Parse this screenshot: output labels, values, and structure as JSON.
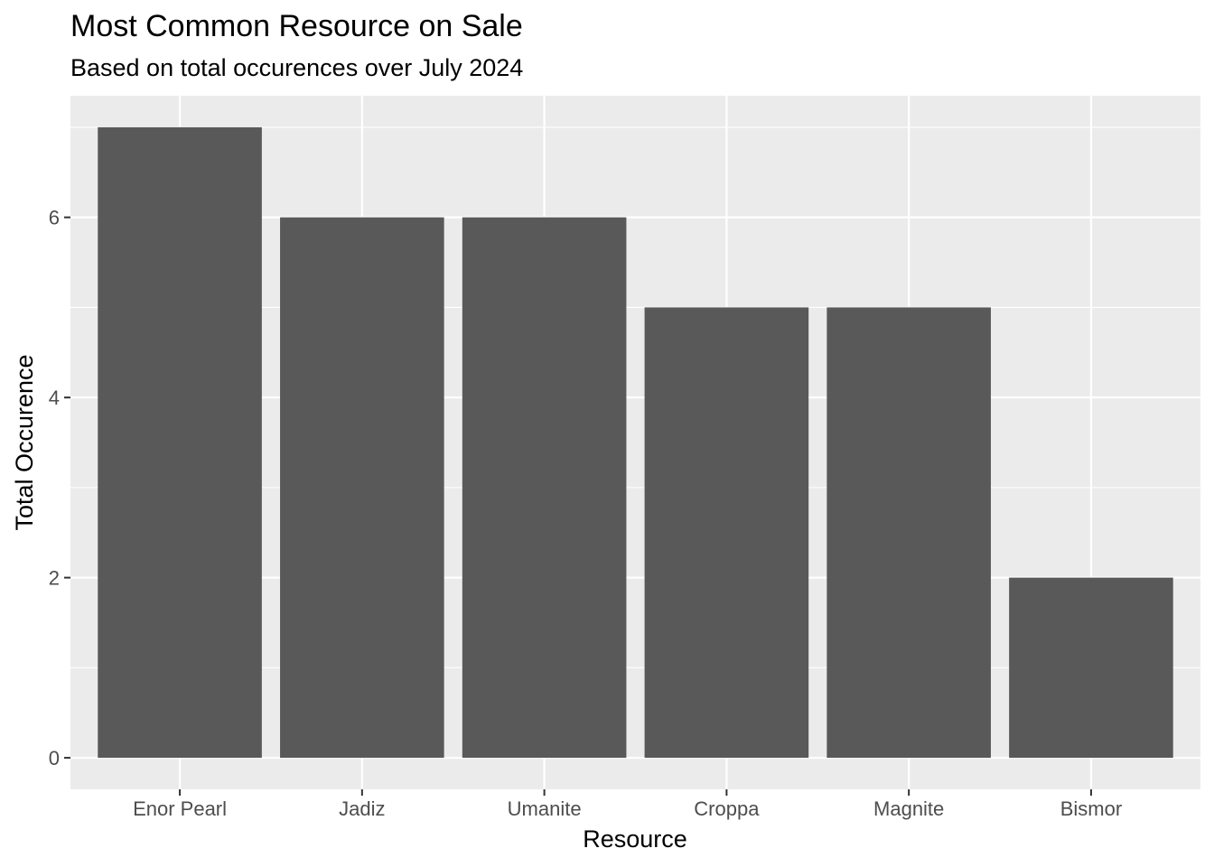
{
  "chart_data": {
    "type": "bar",
    "title": "Most Common Resource on Sale",
    "subtitle": "Based on total occurences over July 2024",
    "xlabel": "Resource",
    "ylabel": "Total Occurence",
    "categories": [
      "Enor Pearl",
      "Jadiz",
      "Umanite",
      "Croppa",
      "Magnite",
      "Bismor"
    ],
    "values": [
      7,
      6,
      6,
      5,
      5,
      2
    ],
    "ylim": [
      -0.35,
      7.35
    ],
    "y_ticks": [
      0,
      2,
      4,
      6
    ],
    "grid": true,
    "legend": "none",
    "colors": {
      "bar": "#595959",
      "panel_background": "#ebebeb",
      "grid_line": "#ffffff",
      "tick_label": "#4d4d4d"
    }
  }
}
